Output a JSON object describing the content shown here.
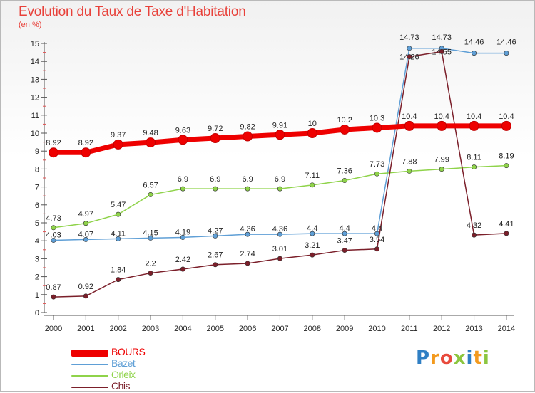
{
  "title": "Evolution du Taux de Taxe d'Habitation",
  "subtitle": "(en %)",
  "logo": "Proxiti",
  "chart_data": {
    "type": "line",
    "title": "Evolution du Taux de Taxe d'Habitation",
    "ylabel": "(en %)",
    "xlabel": "",
    "ylim": [
      0,
      15
    ],
    "yticks": [
      "0",
      "1",
      "2",
      "3",
      "4",
      "5",
      "6",
      "7",
      "8",
      "9",
      "10",
      "11",
      "12",
      "13",
      "14",
      "15"
    ],
    "grid": false,
    "legend_position": "bottom-left",
    "categories": [
      "2000",
      "2001",
      "2002",
      "2003",
      "2004",
      "2005",
      "2006",
      "2007",
      "2008",
      "2009",
      "2010",
      "2011",
      "2012",
      "2013",
      "2014"
    ],
    "series": [
      {
        "name": "BOURS",
        "color": "#ee0000",
        "values": [
          8.92,
          8.92,
          9.37,
          9.48,
          9.63,
          9.72,
          9.82,
          9.91,
          10,
          10.2,
          10.3,
          10.4,
          10.4,
          10.4,
          10.4
        ],
        "labels": [
          "8.92",
          "8.92",
          "9.37",
          "9.48",
          "9.63",
          "9.72",
          "9.82",
          "9.91",
          "10",
          "10.2",
          "10.3",
          "10.4",
          "10.4",
          "10.4",
          "10.4"
        ]
      },
      {
        "name": "Bazet",
        "color": "#5f9fd6",
        "values": [
          4.03,
          4.07,
          4.11,
          4.15,
          4.19,
          4.27,
          4.36,
          4.36,
          4.4,
          4.4,
          4.4,
          14.73,
          14.73,
          14.46,
          14.46
        ],
        "labels": [
          "4.03",
          "4.07",
          "4.11",
          "4.15",
          "4.19",
          "4.27",
          "4.36",
          "4.36",
          "4.4",
          "4.4",
          "4.4",
          "14.73",
          "14.73",
          "14.46",
          "14.46"
        ]
      },
      {
        "name": "Orleix",
        "color": "#8fd34a",
        "values": [
          4.73,
          4.97,
          5.47,
          6.57,
          6.9,
          6.9,
          6.9,
          6.9,
          7.11,
          7.36,
          7.73,
          7.88,
          7.99,
          8.11,
          8.19
        ],
        "labels": [
          "4.73",
          "4.97",
          "5.47",
          "6.57",
          "6.9",
          "6.9",
          "6.9",
          "6.9",
          "7.11",
          "7.36",
          "7.73",
          "7.88",
          "7.99",
          "8.11",
          "8.19"
        ]
      },
      {
        "name": "Chis",
        "color": "#7b1f2a",
        "values": [
          0.87,
          0.92,
          1.84,
          2.2,
          2.42,
          2.67,
          2.74,
          3.01,
          3.21,
          3.47,
          3.54,
          14.26,
          14.55,
          4.32,
          4.41
        ],
        "labels": [
          "0.87",
          "0.92",
          "1.84",
          "2.2",
          "2.42",
          "2.67",
          "2.74",
          "3.01",
          "3.21",
          "3.47",
          "3.54",
          "14.26",
          "14.55",
          "4.32",
          "4.41"
        ]
      }
    ]
  }
}
